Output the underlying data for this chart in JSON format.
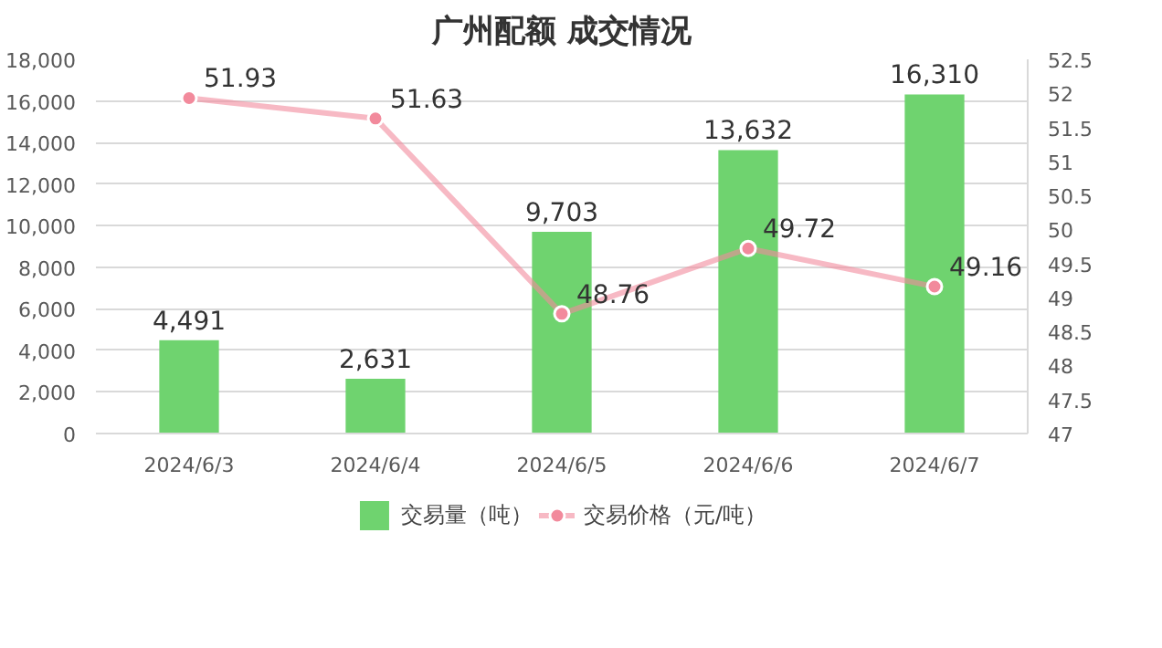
{
  "chart_data": {
    "type": "bar",
    "title": "广州配额 成交情况",
    "categories": [
      "2024/6/3",
      "2024/6/4",
      "2024/6/5",
      "2024/6/6",
      "2024/6/7"
    ],
    "series": [
      {
        "name": "交易量（吨）",
        "color": "#6fd36f",
        "values": [
          4491,
          2631,
          9703,
          13632,
          16310
        ],
        "value_labels": [
          "4,491",
          "2,631",
          "9,703",
          "13,632",
          "16,310"
        ]
      },
      {
        "name": "交易价格（元/吨）",
        "type": "line",
        "axis": "y2",
        "color": "#f28a9c",
        "marker": "circle",
        "values": [
          51.93,
          51.63,
          48.76,
          49.72,
          49.16
        ],
        "value_labels": [
          "51.93",
          "51.63",
          "48.76",
          "49.72",
          "49.16"
        ]
      }
    ],
    "ylim": [
      0,
      18000
    ],
    "yticks": [
      {
        "value": 0,
        "label": "0"
      },
      {
        "value": 2000,
        "label": "2,000"
      },
      {
        "value": 4000,
        "label": "4,000"
      },
      {
        "value": 6000,
        "label": "6,000"
      },
      {
        "value": 8000,
        "label": "8,000"
      },
      {
        "value": 10000,
        "label": "10,000"
      },
      {
        "value": 12000,
        "label": "12,000"
      },
      {
        "value": 14000,
        "label": "14,000"
      },
      {
        "value": 16000,
        "label": "16,000"
      },
      {
        "value": 18000,
        "label": "18,000"
      }
    ],
    "y2lim": [
      47,
      52.5
    ],
    "y2ticks": [
      47,
      47.5,
      48,
      48.5,
      49,
      49.5,
      50,
      50.5,
      51,
      51.5,
      52,
      52.5
    ],
    "grid": "y",
    "legend": "bottom"
  }
}
